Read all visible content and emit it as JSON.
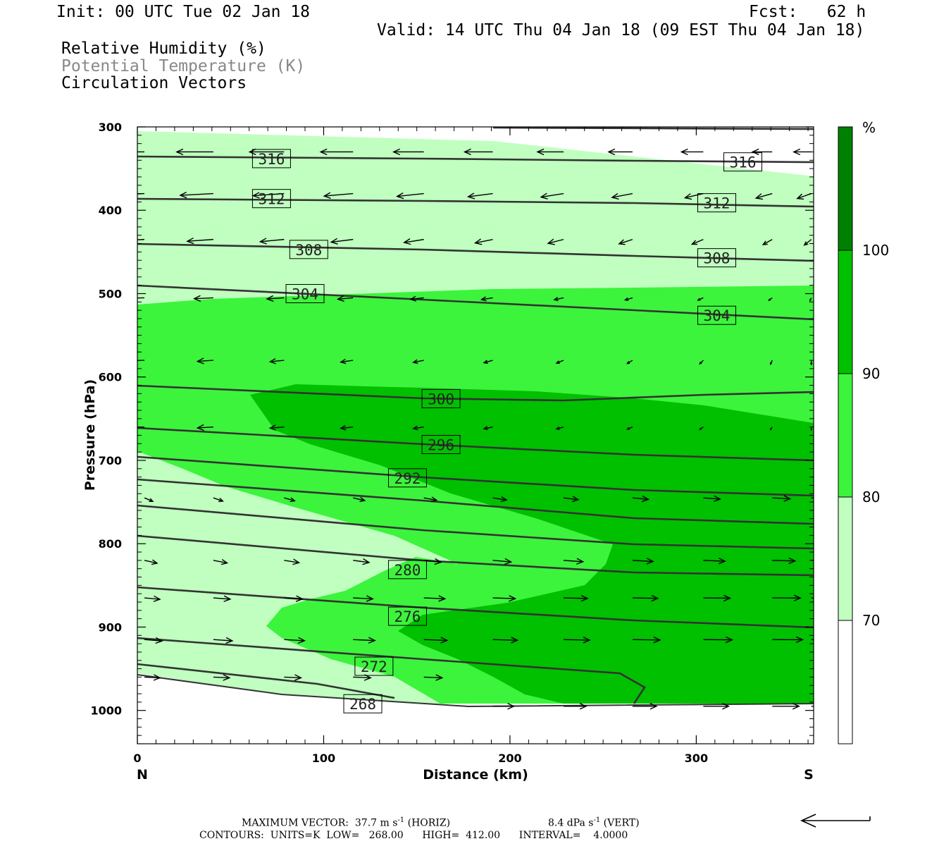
{
  "header": {
    "init": "Init: 00 UTC Tue 02 Jan 18",
    "fcst": "Fcst:   62 h",
    "valid": "Valid: 14 UTC Thu 04 Jan 18 (09 EST Thu 04 Jan 18)",
    "fields": [
      {
        "label": "Relative Humidity (%)",
        "color": "#000000"
      },
      {
        "label": "Potential Temperature (K)",
        "color": "#888888"
      },
      {
        "label": "Circulation Vectors",
        "color": "#000000"
      }
    ]
  },
  "footer": {
    "max_vector": "MAXIMUM VECTOR:  37.7 m s",
    "horiz": "(HORIZ)",
    "vert_value": "8.4 dPa s",
    "vert": "(VERT)",
    "exponent": "-1",
    "contours": "CONTOURS:  UNITS=K  LOW=   268.00      HIGH=  412.00      INTERVAL=    4.0000"
  },
  "colors": {
    "rh_70_80": "#c0ffc0",
    "rh_80_90": "#3cf43c",
    "rh_90_100": "#00c000",
    "rh_100_plus": "#008000",
    "contour": "#333333",
    "vector": "#000000"
  },
  "chart_data": {
    "type": "heatmap",
    "x_label": "Distance (km)",
    "y_label": "Pressure (hPa)",
    "x_range": [
      0,
      363
    ],
    "y_range": [
      1040,
      300
    ],
    "y_scale": "linear (inverted)",
    "x_ticks": [
      "0",
      "100",
      "200",
      "300"
    ],
    "y_ticks": [
      "300",
      "400",
      "500",
      "600",
      "700",
      "800",
      "900",
      "1000"
    ],
    "x_end_labels": {
      "left": "N",
      "right": "S"
    },
    "colorbar": {
      "unit": "%",
      "levels": [
        "70",
        "80",
        "90",
        "100"
      ],
      "colors": [
        "#ffffff",
        "#c0ffc0",
        "#3cf43c",
        "#00c000",
        "#008000"
      ]
    },
    "theta_contour_labels": [
      {
        "value": "316",
        "x": 72,
        "p": 338
      },
      {
        "value": "316",
        "x": 325,
        "p": 342
      },
      {
        "value": "312",
        "x": 72,
        "p": 386
      },
      {
        "value": "312",
        "x": 311,
        "p": 391
      },
      {
        "value": "308",
        "x": 92,
        "p": 447
      },
      {
        "value": "308",
        "x": 311,
        "p": 457
      },
      {
        "value": "304",
        "x": 90,
        "p": 500
      },
      {
        "value": "304",
        "x": 311,
        "p": 526
      },
      {
        "value": "300",
        "x": 163,
        "p": 626
      },
      {
        "value": "296",
        "x": 163,
        "p": 681
      },
      {
        "value": "292",
        "x": 145,
        "p": 721
      },
      {
        "value": "280",
        "x": 145,
        "p": 831
      },
      {
        "value": "276",
        "x": 145,
        "p": 887
      },
      {
        "value": "272",
        "x": 127,
        "p": 947
      },
      {
        "value": "268",
        "x": 121,
        "p": 992
      }
    ]
  }
}
